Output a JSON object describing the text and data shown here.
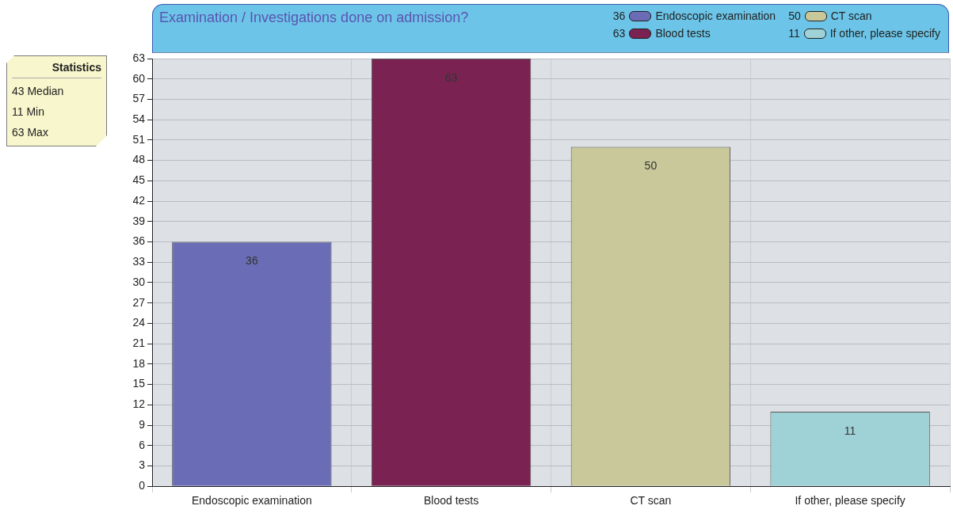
{
  "chart_data": {
    "type": "bar",
    "title": "Examination / Investigations done on admission?",
    "categories": [
      "Endoscopic examination",
      "Blood tests",
      "CT scan",
      "If other, please specify"
    ],
    "series": [
      {
        "name": "Endoscopic examination",
        "color": "#6a6db5",
        "values": [
          36,
          null,
          null,
          null
        ]
      },
      {
        "name": "Blood tests",
        "color": "#7a2352",
        "values": [
          null,
          63,
          null,
          null
        ]
      },
      {
        "name": "CT scan",
        "color": "#c8c89a",
        "values": [
          null,
          null,
          50,
          null
        ]
      },
      {
        "name": "If other, please specify",
        "color": "#9fd2d6",
        "values": [
          null,
          null,
          null,
          11
        ]
      }
    ],
    "stacked": true,
    "ylim": [
      0,
      63
    ],
    "yticks": [
      0,
      3,
      6,
      9,
      12,
      15,
      18,
      21,
      24,
      27,
      30,
      33,
      36,
      39,
      42,
      45,
      48,
      51,
      54,
      57,
      60,
      63
    ],
    "grid": true,
    "legend": "top right",
    "data_labels": true,
    "annotations": [
      "Statistics",
      "43 Median",
      "11 Min",
      "63 Max",
      "36",
      "63",
      "50",
      "11"
    ]
  }
}
